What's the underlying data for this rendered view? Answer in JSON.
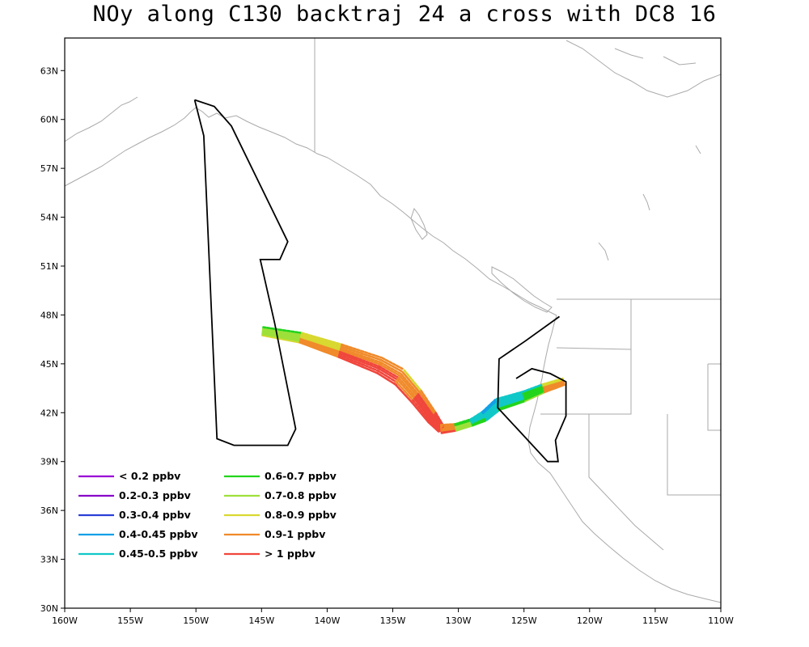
{
  "title": "NOy along C130 backtraj 24 a cross with DC8 16",
  "axes": {
    "x_ticks": [
      "160W",
      "155W",
      "150W",
      "145W",
      "140W",
      "135W",
      "130W",
      "125W",
      "120W",
      "115W",
      "110W"
    ],
    "y_ticks": [
      "30N",
      "33N",
      "36N",
      "39N",
      "42N",
      "45N",
      "48N",
      "51N",
      "54N",
      "57N",
      "60N",
      "63N"
    ],
    "lon_range": [
      -160,
      -110
    ],
    "lat_range": [
      30,
      65
    ]
  },
  "legend": [
    {
      "label": "< 0.2 ppbv",
      "color": "#9b00d6"
    },
    {
      "label": "0.2-0.3 ppbv",
      "color": "#8a00c8"
    },
    {
      "label": "0.3-0.4 ppbv",
      "color": "#2b3fd8"
    },
    {
      "label": "0.4-0.45 ppbv",
      "color": "#12a0e6"
    },
    {
      "label": "0.45-0.5 ppbv",
      "color": "#10c8c8"
    },
    {
      "label": "0.6-0.7 ppbv",
      "color": "#22d41c"
    },
    {
      "label": "0.7-0.8 ppbv",
      "color": "#9ee03a"
    },
    {
      "label": "0.8-0.9 ppbv",
      "color": "#d8d830"
    },
    {
      "label": "0.9-1 ppbv",
      "color": "#f08a2a"
    },
    {
      "label": "> 1 ppbv",
      "color": "#f0463c"
    }
  ],
  "colors": {
    "coastline": "#aaaaaa",
    "flight_track": "#000000",
    "frame": "#000000"
  },
  "flight_track": [
    [
      -150.1,
      61.2
    ],
    [
      -148.6,
      60.8
    ],
    [
      -147.3,
      59.6
    ],
    [
      -143.0,
      52.5
    ],
    [
      -143.6,
      51.4
    ],
    [
      -145.1,
      51.4
    ],
    [
      -144.0,
      47.5
    ],
    [
      -142.4,
      41.0
    ],
    [
      -143.0,
      40.0
    ],
    [
      -147.1,
      40.0
    ],
    [
      -148.4,
      40.4
    ],
    [
      -149.4,
      59.0
    ],
    [
      -150.1,
      61.2
    ]
  ],
  "flight_track_east": [
    [
      -122.3,
      47.9
    ],
    [
      -124.9,
      46.4
    ],
    [
      -126.9,
      45.3
    ],
    [
      -127.0,
      42.3
    ],
    [
      -125.5,
      41.0
    ],
    [
      -123.2,
      39.0
    ],
    [
      -122.4,
      39.0
    ],
    [
      -122.6,
      40.3
    ],
    [
      -121.8,
      41.8
    ],
    [
      -121.8,
      43.9
    ],
    [
      -123.0,
      44.4
    ],
    [
      -124.4,
      44.7
    ],
    [
      -125.6,
      44.1
    ]
  ],
  "trajectory_centerline": [
    [
      -144.9,
      47.0
    ],
    [
      -142.0,
      46.6
    ],
    [
      -139.0,
      45.8
    ],
    [
      -136.0,
      44.9
    ],
    [
      -134.5,
      44.2
    ],
    [
      -133.2,
      43.0
    ],
    [
      -132.0,
      41.7
    ],
    [
      -131.3,
      41.0
    ],
    [
      -130.2,
      41.1
    ],
    [
      -129.0,
      41.4
    ],
    [
      -128.0,
      41.8
    ],
    [
      -127.0,
      42.5
    ],
    [
      -125.0,
      43.0
    ],
    [
      -123.5,
      43.5
    ],
    [
      -122.0,
      43.9
    ]
  ],
  "trajectory_values": [
    0.65,
    0.85,
    0.95,
    1.05,
    0.95,
    0.95,
    1.1,
    1.2,
    0.75,
    0.7,
    0.48,
    0.48,
    0.65,
    0.65,
    1.2
  ],
  "trajectory_width_deg": [
    0.5,
    0.6,
    0.8,
    1.0,
    1.1,
    1.0,
    0.8,
    0.5,
    0.4,
    0.4,
    0.6,
    0.7,
    0.6,
    0.5,
    0.4
  ]
}
